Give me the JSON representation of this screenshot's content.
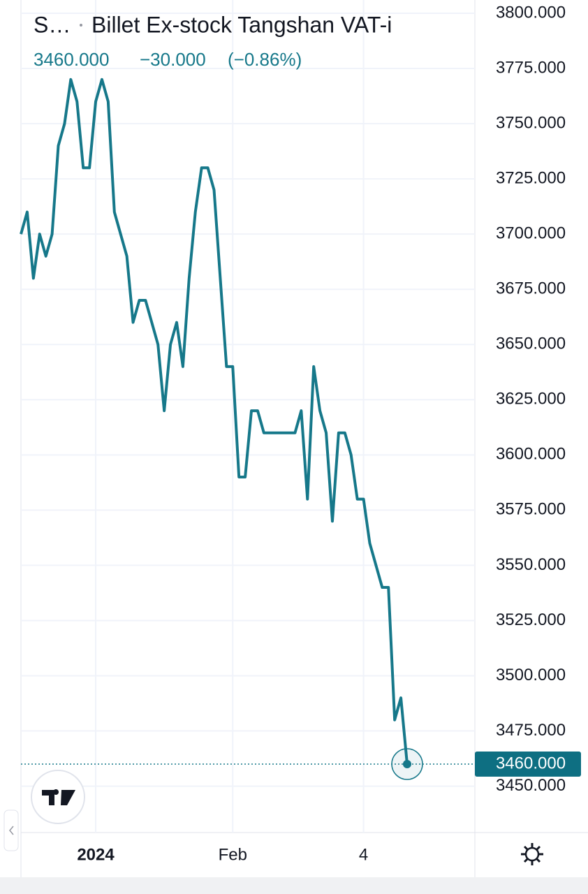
{
  "chart_data": {
    "type": "line",
    "symbol": "S…",
    "title": "Billet Ex-stock Tangshan VAT-i",
    "last_price": "3460.000",
    "change": "−30.000",
    "change_percent": "(−0.86%)",
    "last_value_label": "3460.000",
    "categories": [
      null,
      null,
      null,
      null,
      null,
      null,
      null,
      null,
      null,
      null,
      null,
      null,
      "2024",
      null,
      null,
      null,
      null,
      null,
      null,
      null,
      null,
      null,
      null,
      null,
      null,
      null,
      null,
      null,
      null,
      null,
      null,
      null,
      null,
      null,
      "Feb",
      null,
      null,
      null,
      null,
      null,
      null,
      null,
      null,
      null,
      null,
      null,
      null,
      null,
      null,
      null,
      null,
      null,
      null,
      null,
      null,
      "4",
      null,
      null,
      null,
      null,
      null,
      null,
      null
    ],
    "series": [
      {
        "color": "#16788a",
        "values": [
          3700,
          3710,
          3680,
          3700,
          3690,
          3700,
          3740,
          3750,
          3770,
          3760,
          3730,
          3730,
          3760,
          3770,
          3760,
          3710,
          3700,
          3690,
          3660,
          3670,
          3670,
          3660,
          3650,
          3620,
          3650,
          3660,
          3640,
          3680,
          3710,
          3730,
          3730,
          3720,
          3680,
          3640,
          3640,
          3590,
          3590,
          3620,
          3620,
          3610,
          3610,
          3610,
          3610,
          3610,
          3610,
          3620,
          3580,
          3640,
          3620,
          3610,
          3570,
          3610,
          3610,
          3600,
          3580,
          3580,
          3560,
          3550,
          3540,
          3540,
          3480,
          3490,
          3460
        ]
      }
    ],
    "ylim": [
      3429,
      3806
    ],
    "yticks": [
      {
        "value": 3450,
        "label": "3450.000"
      },
      {
        "value": 3475,
        "label": "3475.000"
      },
      {
        "value": 3500,
        "label": "3500.000"
      },
      {
        "value": 3525,
        "label": "3525.000"
      },
      {
        "value": 3550,
        "label": "3550.000"
      },
      {
        "value": 3575,
        "label": "3575.000"
      },
      {
        "value": 3600,
        "label": "3600.000"
      },
      {
        "value": 3625,
        "label": "3625.000"
      },
      {
        "value": 3650,
        "label": "3650.000"
      },
      {
        "value": 3675,
        "label": "3675.000"
      },
      {
        "value": 3700,
        "label": "3700.000"
      },
      {
        "value": 3725,
        "label": "3725.000"
      },
      {
        "value": 3750,
        "label": "3750.000"
      },
      {
        "value": 3775,
        "label": "3775.000"
      },
      {
        "value": 3800,
        "label": "3800.000"
      }
    ],
    "grid": true
  }
}
